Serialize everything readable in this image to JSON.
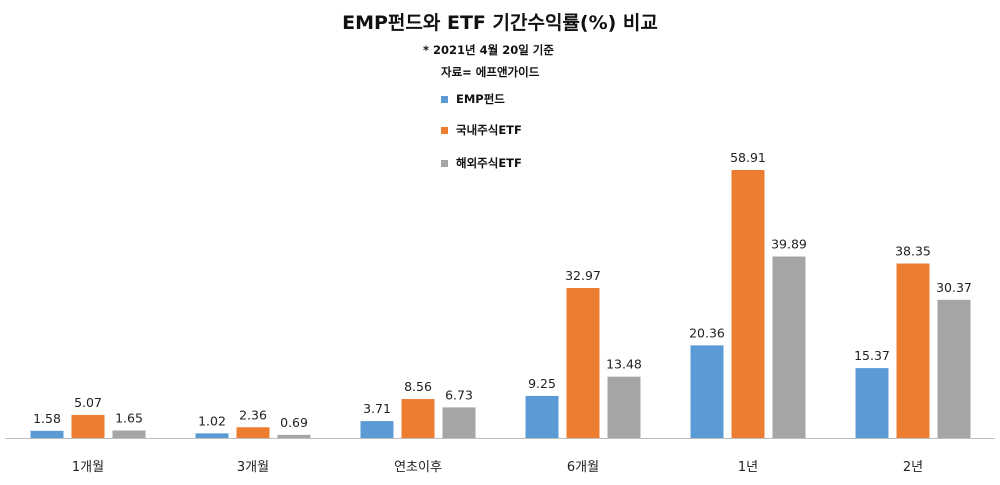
{
  "chart_data": {
    "type": "bar",
    "title": "EMP펀드와 ETF 기간수익률(%) 비교",
    "subtitle": "* 2021년 4월 20일 기준",
    "source": "자료= 에프앤가이드",
    "categories": [
      "1개월",
      "3개월",
      "연초이후",
      "6개월",
      "1년",
      "2년"
    ],
    "series": [
      {
        "name": "EMP펀드",
        "color": "#5B9BD5",
        "values": [
          1.58,
          1.02,
          3.71,
          9.25,
          20.36,
          15.37
        ]
      },
      {
        "name": "국내주식ETF",
        "color": "#ED7D31",
        "values": [
          5.07,
          2.36,
          8.56,
          32.97,
          58.91,
          38.35
        ]
      },
      {
        "name": "해외주식ETF",
        "color": "#A5A5A5",
        "values": [
          1.65,
          0.69,
          6.73,
          13.48,
          39.89,
          30.37
        ]
      }
    ],
    "ylim": [
      0,
      65
    ],
    "grid": false,
    "legend_position": "top-center",
    "data_labels": true
  }
}
